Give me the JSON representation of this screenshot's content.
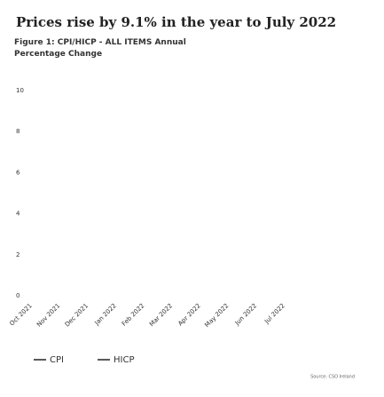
{
  "chart_data": {
    "type": "line",
    "title": "Prices rise by 9.1% in the year to July 2022",
    "subtitle": "Figure 1: CPI/HICP - ALL ITEMS Annual Percentage Change",
    "source": "Source: CSO Ireland",
    "categories": [
      "Oct 2021",
      "Nov 2021",
      "Dec 2021",
      "Jan 2022",
      "Feb 2022",
      "Mar 2022",
      "Apr 2022",
      "May 2022",
      "Jun 2022",
      "Jul 2022"
    ],
    "series": [
      {
        "name": "CPI",
        "color": "#222222",
        "values": [
          null,
          null,
          null,
          null,
          null,
          null,
          null,
          null,
          null,
          null
        ]
      },
      {
        "name": "HICP",
        "color": "#222222",
        "values": [
          null,
          null,
          null,
          null,
          null,
          null,
          null,
          null,
          null,
          null
        ]
      }
    ],
    "ylim": [
      0,
      10
    ],
    "yticks": [
      0,
      2,
      4,
      6,
      8,
      10
    ]
  }
}
